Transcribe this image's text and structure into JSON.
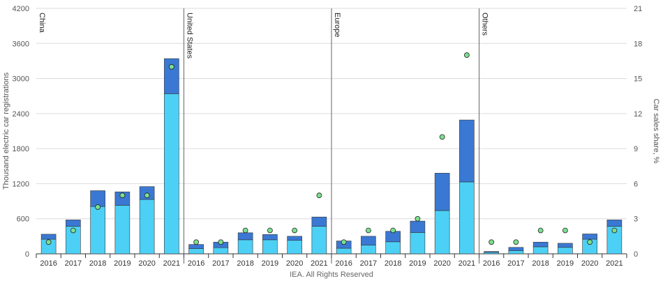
{
  "chart_data": {
    "type": "bar",
    "ylabel": "Thousand electric car registrations",
    "y2label": "Car sales share, %",
    "ylim": [
      0,
      4200
    ],
    "y2lim": [
      0,
      21
    ],
    "yticks": [
      0,
      600,
      1200,
      1800,
      2400,
      3000,
      3600,
      4200
    ],
    "y2ticks": [
      0,
      3,
      6,
      9,
      12,
      15,
      18,
      21
    ],
    "credit": "IEA. All Rights Reserved",
    "stacked": true,
    "series_colors": [
      "#4dd0f5",
      "#3a78d3"
    ],
    "marker_color": "#7be08f",
    "panels": [
      {
        "region": "China",
        "years": [
          "2016",
          "2017",
          "2018",
          "2019",
          "2020",
          "2021"
        ],
        "series": [
          {
            "values": [
              250,
              470,
              810,
              830,
              930,
              2740
            ]
          },
          {
            "values": [
              85,
              110,
              270,
              230,
              220,
              600
            ]
          }
        ],
        "sales_share": [
          1,
          2,
          4,
          5,
          5,
          16
        ]
      },
      {
        "region": "United States",
        "years": [
          "2016",
          "2017",
          "2018",
          "2019",
          "2020",
          "2021"
        ],
        "series": [
          {
            "values": [
              90,
              105,
              240,
              240,
              230,
              470
            ]
          },
          {
            "values": [
              70,
              95,
              120,
              90,
              70,
              160
            ]
          }
        ],
        "sales_share": [
          1,
          1,
          2,
          2,
          2,
          5
        ]
      },
      {
        "region": "Europe",
        "years": [
          "2016",
          "2017",
          "2018",
          "2019",
          "2020",
          "2021"
        ],
        "series": [
          {
            "values": [
              95,
              150,
              205,
              365,
              740,
              1230
            ]
          },
          {
            "values": [
              125,
              150,
              180,
              195,
              640,
              1060
            ]
          }
        ],
        "sales_share": [
          1,
          2,
          2,
          3,
          10,
          17
        ]
      },
      {
        "region": "Others",
        "years": [
          "2016",
          "2017",
          "2018",
          "2019",
          "2020",
          "2021"
        ],
        "series": [
          {
            "values": [
              25,
              55,
              120,
              110,
              250,
              470
            ]
          },
          {
            "values": [
              15,
              55,
              80,
              70,
              90,
              110
            ]
          }
        ],
        "sales_share": [
          1,
          1,
          2,
          2,
          1,
          2
        ]
      }
    ]
  }
}
